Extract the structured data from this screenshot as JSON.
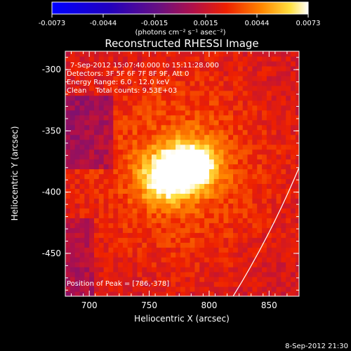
{
  "chart_data": {
    "type": "heatmap",
    "title": "Reconstructed RHESSI Image",
    "xlabel": "Heliocentric X (arcsec)",
    "ylabel": "Heliocentric Y (arcsec)",
    "x_range": [
      680,
      875
    ],
    "y_range": [
      -485,
      -285
    ],
    "x_ticks": [
      700,
      750,
      800,
      850
    ],
    "y_ticks": [
      -300,
      -350,
      -400,
      -450
    ],
    "colorbar": {
      "min": -0.0073,
      "max": 0.0073,
      "ticks": [
        "-0.0073",
        "-0.0044",
        "-0.0015",
        "0.0015",
        "0.0044",
        "0.0073"
      ],
      "unit_label": "(photons cm⁻² s⁻¹ asec⁻²)"
    },
    "annotations": {
      "time_range": "7-Sep-2012 15:07:40.000 to 15:11:28.000",
      "detectors": "Detectors: 3F 5F 6F 7F 8F 9F, Att 0",
      "energy": "Energy Range: 6.0 - 12.0 keV",
      "clean": "Clean    Total counts: 9.53E+03",
      "peak": "Position of Peak = [786,-378]"
    },
    "peak": [
      786,
      -378
    ],
    "sources": [
      {
        "x": 786,
        "y": -378,
        "amplitude": 0.0073
      },
      {
        "x": 763,
        "y": -387,
        "amplitude": 0.0066
      }
    ],
    "limb_curve": [
      [
        820,
        -485
      ],
      [
        875,
        -380
      ]
    ],
    "grid": false
  },
  "footer": {
    "timestamp": "8-Sep-2012 21:30"
  }
}
